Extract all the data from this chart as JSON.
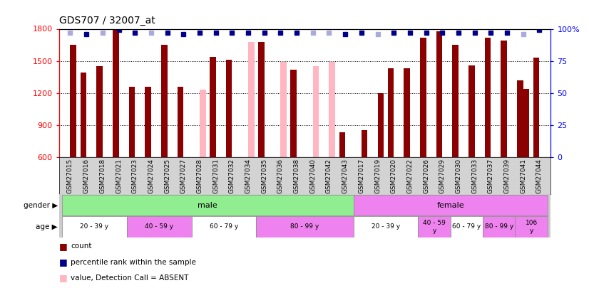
{
  "title": "GDS707 / 32007_at",
  "samples": [
    "GSM27015",
    "GSM27016",
    "GSM27018",
    "GSM27021",
    "GSM27023",
    "GSM27024",
    "GSM27025",
    "GSM27027",
    "GSM27028",
    "GSM27031",
    "GSM27032",
    "GSM27034",
    "GSM27035",
    "GSM27036",
    "GSM27038",
    "GSM27040",
    "GSM27042",
    "GSM27043",
    "GSM27017",
    "GSM27019",
    "GSM27020",
    "GSM27022",
    "GSM27026",
    "GSM27029",
    "GSM27030",
    "GSM27033",
    "GSM27037",
    "GSM27039",
    "GSM27041",
    "GSM27044"
  ],
  "count_values": [
    600,
    1390,
    1450,
    1790,
    1260,
    1260,
    1650,
    1260,
    600,
    1540,
    1510,
    600,
    1680,
    600,
    1420,
    600,
    600,
    830,
    600,
    600,
    1430,
    1430,
    1720,
    1780,
    1650,
    1460,
    1720,
    1690,
    1320,
    1530
  ],
  "rank_values": [
    1650,
    600,
    600,
    600,
    600,
    600,
    600,
    600,
    1230,
    600,
    600,
    1680,
    600,
    1490,
    600,
    1450,
    1490,
    600,
    850,
    1200,
    600,
    600,
    600,
    600,
    600,
    600,
    600,
    600,
    1240,
    600
  ],
  "count_absent": [
    true,
    false,
    false,
    false,
    false,
    false,
    false,
    false,
    false,
    false,
    false,
    false,
    false,
    false,
    false,
    false,
    false,
    false,
    false,
    false,
    false,
    false,
    false,
    false,
    false,
    false,
    false,
    false,
    false,
    false
  ],
  "rank_absent": [
    false,
    false,
    false,
    false,
    false,
    false,
    false,
    false,
    true,
    false,
    false,
    true,
    false,
    true,
    false,
    true,
    true,
    false,
    false,
    false,
    false,
    false,
    false,
    false,
    false,
    false,
    false,
    false,
    false,
    false
  ],
  "percentile_rank": [
    97,
    96,
    97,
    99,
    97,
    97,
    97,
    96,
    97,
    97,
    97,
    97,
    97,
    97,
    97,
    97,
    97,
    96,
    97,
    96,
    97,
    97,
    97,
    97,
    97,
    97,
    97,
    97,
    96,
    99
  ],
  "percentile_absent": [
    true,
    false,
    true,
    false,
    false,
    true,
    false,
    false,
    false,
    false,
    false,
    false,
    false,
    false,
    false,
    true,
    true,
    false,
    false,
    true,
    false,
    false,
    false,
    false,
    false,
    false,
    false,
    false,
    true,
    false
  ],
  "gender_groups": [
    {
      "label": "male",
      "start": 0,
      "end": 18,
      "color": "#90ee90"
    },
    {
      "label": "female",
      "start": 18,
      "end": 30,
      "color": "#ee82ee"
    }
  ],
  "age_groups": [
    {
      "label": "20 - 39 y",
      "start": 0,
      "end": 4,
      "color": "#ffffff"
    },
    {
      "label": "40 - 59 y",
      "start": 4,
      "end": 8,
      "color": "#ee82ee"
    },
    {
      "label": "60 - 79 y",
      "start": 8,
      "end": 12,
      "color": "#ffffff"
    },
    {
      "label": "80 - 99 y",
      "start": 12,
      "end": 18,
      "color": "#ee82ee"
    },
    {
      "label": "20 - 39 y",
      "start": 18,
      "end": 22,
      "color": "#ffffff"
    },
    {
      "label": "40 - 59\ny",
      "start": 22,
      "end": 24,
      "color": "#ee82ee"
    },
    {
      "label": "60 - 79 y",
      "start": 24,
      "end": 26,
      "color": "#ffffff"
    },
    {
      "label": "80 - 99 y",
      "start": 26,
      "end": 28,
      "color": "#ee82ee"
    },
    {
      "label": "106\ny",
      "start": 28,
      "end": 30,
      "color": "#ee82ee"
    }
  ],
  "ylim": [
    600,
    1800
  ],
  "yticks": [
    600,
    900,
    1200,
    1500,
    1800
  ],
  "right_yticks": [
    0,
    25,
    50,
    75,
    100
  ],
  "bar_width": 0.38,
  "color_count_present": "#8B0000",
  "color_count_absent": "#ffb6c1",
  "color_rank_present": "#8B0000",
  "color_rank_absent": "#ffb6c1",
  "color_pct_present": "#00008B",
  "color_pct_absent": "#aaaadd",
  "bg_color": "#ffffff",
  "chart_bg": "#ffffff",
  "xtick_bg": "#d3d3d3"
}
